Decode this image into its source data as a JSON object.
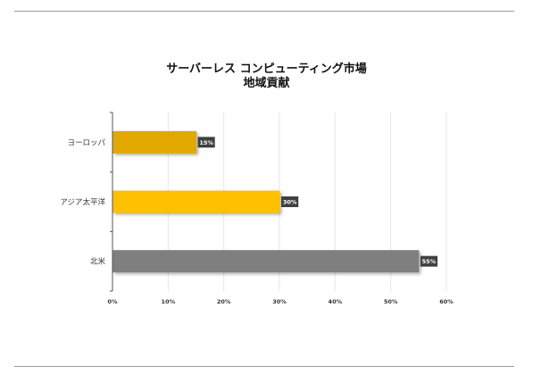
{
  "chart_data": {
    "type": "bar",
    "orientation": "horizontal",
    "title_line1": "サーバーレス コンピューティング市場",
    "title_line2": "地域貢献",
    "categories": [
      "ヨーロッパ",
      "アジア太平洋",
      "北米"
    ],
    "values": [
      15,
      30,
      55
    ],
    "data_labels": [
      "15%",
      "30%",
      "55%"
    ],
    "bar_colors": [
      "#E0A800",
      "#FFC000",
      "#7F7F7F"
    ],
    "xticks": [
      "0%",
      "10%",
      "20%",
      "30%",
      "40%",
      "50%",
      "60%"
    ],
    "xlim": [
      0,
      60
    ],
    "grid": "vertical"
  }
}
